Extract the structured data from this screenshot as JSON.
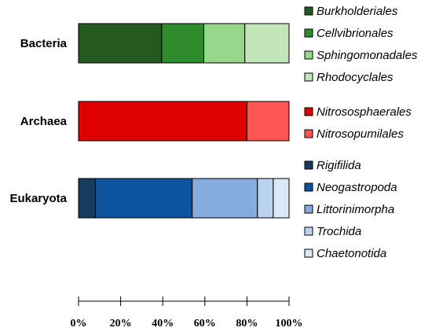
{
  "chart_data": {
    "type": "bar",
    "orientation": "horizontal",
    "stacked": true,
    "normalized": true,
    "categories": [
      "Bacteria",
      "Archaea",
      "Eukaryota"
    ],
    "groups": [
      {
        "category": "Bacteria",
        "series": [
          {
            "name": "Burkholderiales",
            "value": 39.5,
            "color": "#245a1f"
          },
          {
            "name": "Cellvibrionales",
            "value": 20,
            "color": "#2e8b2e"
          },
          {
            "name": "Sphingomonadales",
            "value": 19.5,
            "color": "#98d68a"
          },
          {
            "name": "Rhodocyclales",
            "value": 21,
            "color": "#c2e6b9"
          }
        ]
      },
      {
        "category": "Archaea",
        "series": [
          {
            "name": "Nitrososphaerales",
            "value": 80,
            "color": "#e00000"
          },
          {
            "name": "Nitrosopumilales",
            "value": 20,
            "color": "#ff5555"
          }
        ]
      },
      {
        "category": "Eukaryota",
        "series": [
          {
            "name": "Rigifilida",
            "value": 8,
            "color": "#173b5e"
          },
          {
            "name": "Neogastropoda",
            "value": 46,
            "color": "#0e53a0"
          },
          {
            "name": "Littorinimorpha",
            "value": 31,
            "color": "#86abdf"
          },
          {
            "name": "Trochida",
            "value": 7.5,
            "color": "#bcd3f0"
          },
          {
            "name": "Chaetonotida",
            "value": 7.5,
            "color": "#dde8f7"
          }
        ]
      }
    ],
    "x_ticks": [
      "0%",
      "20%",
      "40%",
      "60%",
      "80%",
      "100%"
    ],
    "xlim": [
      0,
      100
    ],
    "title": "",
    "xlabel": "",
    "ylabel": "",
    "grid": false,
    "legend_position": "right"
  }
}
